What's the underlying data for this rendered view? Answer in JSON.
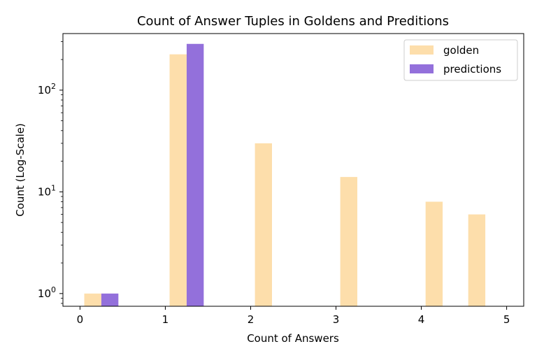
{
  "chart_data": {
    "type": "bar",
    "title": "Count of Answer Tuples in Goldens and Preditions",
    "xlabel": "Count of Answers",
    "ylabel": "Count (Log-Scale)",
    "yscale": "log",
    "xlim": [
      -0.2,
      5.2
    ],
    "ylim": [
      0.75,
      360
    ],
    "x_ticks": [
      0,
      1,
      2,
      3,
      4,
      5
    ],
    "y_ticks": [
      {
        "value": 1,
        "base": "10",
        "exp": "0"
      },
      {
        "value": 10,
        "base": "10",
        "exp": "1"
      },
      {
        "value": 100,
        "base": "10",
        "exp": "2"
      }
    ],
    "legend_position": "top-right",
    "series": [
      {
        "name": "golden",
        "color": "#fddeab",
        "bars": [
          {
            "x": [
              0.05,
              0.25
            ],
            "value": 1
          },
          {
            "x": [
              1.05,
              1.25
            ],
            "value": 225
          },
          {
            "x": [
              2.05,
              2.25
            ],
            "value": 30
          },
          {
            "x": [
              3.05,
              3.25
            ],
            "value": 14
          },
          {
            "x": [
              4.05,
              4.25
            ],
            "value": 8
          },
          {
            "x": [
              4.55,
              4.75
            ],
            "value": 6
          }
        ]
      },
      {
        "name": "predictions",
        "color": "#9370db",
        "bars": [
          {
            "x": [
              0.25,
              0.45
            ],
            "value": 1
          },
          {
            "x": [
              1.25,
              1.45
            ],
            "value": 285
          }
        ]
      }
    ]
  }
}
